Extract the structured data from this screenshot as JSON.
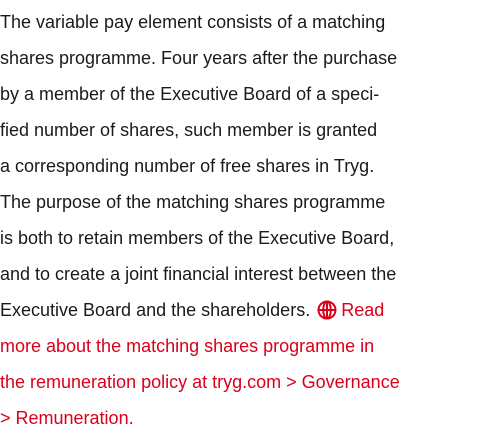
{
  "paragraph": {
    "lines": [
      "The variable pay element consists of a matching",
      "shares programme. Four years after the purchase",
      "by a member of the Executive Board of a speci-",
      "fied number of shares, such member is granted",
      "a corresponding number of free shares in Tryg.",
      "The purpose of the matching shares programme",
      "is both to retain members of the Executive Board,",
      "and to create a joint financial interest between the",
      "Executive Board and the shareholders."
    ]
  },
  "link": {
    "lines": [
      "Read",
      "more about the matching shares programme in",
      "the remuneration policy at tryg.com > Governance",
      "> Remuneration."
    ]
  }
}
